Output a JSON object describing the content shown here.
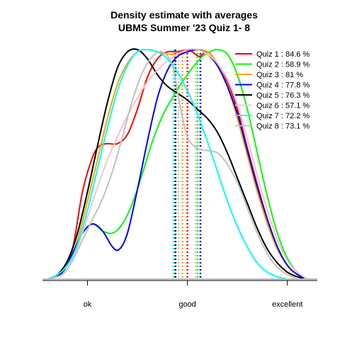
{
  "chart_data": {
    "type": "line",
    "title": "Density estimate with averages",
    "subtitle": "UBMS Summer '23 Quiz 1- 8",
    "xlabel": "",
    "ylabel": "",
    "xlim": [
      0.55,
      3.3
    ],
    "ylim": [
      0,
      1
    ],
    "x_ticks": [
      {
        "value": 1,
        "label": "ok"
      },
      {
        "value": 2,
        "label": "good"
      },
      {
        "value": 3,
        "label": "excellent"
      }
    ],
    "grid": false,
    "legend_position": "top-right",
    "series": [
      {
        "name": "Quiz 1",
        "pct": "84.6 %",
        "color": "#ff0000",
        "mean": 2.0,
        "points": [
          [
            0.6,
            0.0
          ],
          [
            0.75,
            0.03
          ],
          [
            0.85,
            0.13
          ],
          [
            0.95,
            0.38
          ],
          [
            1.05,
            0.53
          ],
          [
            1.12,
            0.58
          ],
          [
            1.2,
            0.59
          ],
          [
            1.3,
            0.59
          ],
          [
            1.4,
            0.63
          ],
          [
            1.5,
            0.74
          ],
          [
            1.6,
            0.88
          ],
          [
            1.7,
            0.96
          ],
          [
            1.8,
            0.99
          ],
          [
            1.9,
            0.99
          ],
          [
            2.0,
            1.0
          ],
          [
            2.05,
            0.99
          ],
          [
            2.12,
            0.97
          ],
          [
            2.2,
            0.99
          ],
          [
            2.3,
            0.94
          ],
          [
            2.4,
            0.86
          ],
          [
            2.5,
            0.74
          ],
          [
            2.6,
            0.57
          ],
          [
            2.7,
            0.41
          ],
          [
            2.8,
            0.26
          ],
          [
            2.9,
            0.14
          ],
          [
            3.0,
            0.06
          ],
          [
            3.1,
            0.02
          ],
          [
            3.2,
            0.0
          ]
        ]
      },
      {
        "name": "Quiz 2",
        "pct": "58.9 %",
        "color": "#00ff00",
        "mean": 2.1,
        "points": [
          [
            0.6,
            0.0
          ],
          [
            0.75,
            0.03
          ],
          [
            0.85,
            0.11
          ],
          [
            0.95,
            0.2
          ],
          [
            1.05,
            0.24
          ],
          [
            1.15,
            0.21
          ],
          [
            1.25,
            0.2
          ],
          [
            1.35,
            0.24
          ],
          [
            1.45,
            0.33
          ],
          [
            1.55,
            0.46
          ],
          [
            1.65,
            0.6
          ],
          [
            1.75,
            0.71
          ],
          [
            1.85,
            0.79
          ],
          [
            1.95,
            0.86
          ],
          [
            2.05,
            0.92
          ],
          [
            2.15,
            0.97
          ],
          [
            2.25,
            0.995
          ],
          [
            2.3,
            1.0
          ],
          [
            2.4,
            0.98
          ],
          [
            2.5,
            0.89
          ],
          [
            2.6,
            0.74
          ],
          [
            2.7,
            0.55
          ],
          [
            2.8,
            0.36
          ],
          [
            2.9,
            0.2
          ],
          [
            3.0,
            0.09
          ],
          [
            3.1,
            0.03
          ],
          [
            3.2,
            0.0
          ]
        ]
      },
      {
        "name": "Quiz 3",
        "pct": "81 %",
        "color": "#ffa500",
        "mean": 1.95,
        "points": [
          [
            0.6,
            0.0
          ],
          [
            0.7,
            0.02
          ],
          [
            0.8,
            0.07
          ],
          [
            0.9,
            0.17
          ],
          [
            1.0,
            0.34
          ],
          [
            1.1,
            0.52
          ],
          [
            1.2,
            0.7
          ],
          [
            1.3,
            0.85
          ],
          [
            1.4,
            0.94
          ],
          [
            1.5,
            0.99
          ],
          [
            1.6,
            1.0
          ],
          [
            1.7,
            0.99
          ],
          [
            1.8,
            0.98
          ],
          [
            1.9,
            0.98
          ],
          [
            2.0,
            0.99
          ],
          [
            2.1,
            1.0
          ],
          [
            2.2,
            0.99
          ],
          [
            2.3,
            0.94
          ],
          [
            2.4,
            0.84
          ],
          [
            2.5,
            0.7
          ],
          [
            2.6,
            0.54
          ],
          [
            2.7,
            0.38
          ],
          [
            2.8,
            0.24
          ],
          [
            2.9,
            0.13
          ],
          [
            3.0,
            0.06
          ],
          [
            3.1,
            0.02
          ],
          [
            3.2,
            0.0
          ]
        ]
      },
      {
        "name": "Quiz 4",
        "pct": "77.8 %",
        "color": "#0000ff",
        "mean": 2.13,
        "points": [
          [
            0.6,
            0.0
          ],
          [
            0.75,
            0.03
          ],
          [
            0.85,
            0.11
          ],
          [
            0.95,
            0.2
          ],
          [
            1.05,
            0.24
          ],
          [
            1.15,
            0.21
          ],
          [
            1.25,
            0.14
          ],
          [
            1.32,
            0.13
          ],
          [
            1.4,
            0.2
          ],
          [
            1.5,
            0.39
          ],
          [
            1.6,
            0.6
          ],
          [
            1.7,
            0.79
          ],
          [
            1.8,
            0.91
          ],
          [
            1.9,
            0.97
          ],
          [
            2.0,
            0.99
          ],
          [
            2.1,
            1.0
          ],
          [
            2.2,
            0.98
          ],
          [
            2.3,
            0.93
          ],
          [
            2.4,
            0.84
          ],
          [
            2.5,
            0.72
          ],
          [
            2.6,
            0.56
          ],
          [
            2.7,
            0.4
          ],
          [
            2.8,
            0.26
          ],
          [
            2.9,
            0.14
          ],
          [
            3.0,
            0.06
          ],
          [
            3.1,
            0.02
          ],
          [
            3.2,
            0.0
          ]
        ]
      },
      {
        "name": "Quiz 5",
        "pct": "76.3 %",
        "color": "#000000",
        "mean": 1.88,
        "points": [
          [
            0.6,
            0.0
          ],
          [
            0.7,
            0.02
          ],
          [
            0.8,
            0.08
          ],
          [
            0.9,
            0.2
          ],
          [
            1.0,
            0.38
          ],
          [
            1.1,
            0.58
          ],
          [
            1.2,
            0.77
          ],
          [
            1.3,
            0.92
          ],
          [
            1.4,
            0.99
          ],
          [
            1.5,
            1.0
          ],
          [
            1.6,
            0.96
          ],
          [
            1.7,
            0.89
          ],
          [
            1.8,
            0.84
          ],
          [
            1.9,
            0.81
          ],
          [
            2.0,
            0.78
          ],
          [
            2.1,
            0.74
          ],
          [
            2.2,
            0.7
          ],
          [
            2.3,
            0.64
          ],
          [
            2.4,
            0.55
          ],
          [
            2.5,
            0.44
          ],
          [
            2.6,
            0.33
          ],
          [
            2.7,
            0.22
          ],
          [
            2.8,
            0.13
          ],
          [
            2.9,
            0.07
          ],
          [
            3.0,
            0.03
          ],
          [
            3.1,
            0.01
          ],
          [
            3.2,
            0.0
          ]
        ]
      },
      {
        "name": "Quiz 6",
        "pct": "57.1 %",
        "color": "#ffc0cb",
        "mean": 2.08,
        "points": [
          [
            0.6,
            0.0
          ],
          [
            0.7,
            0.02
          ],
          [
            0.8,
            0.06
          ],
          [
            0.9,
            0.14
          ],
          [
            1.0,
            0.27
          ],
          [
            1.1,
            0.4
          ],
          [
            1.2,
            0.52
          ],
          [
            1.3,
            0.62
          ],
          [
            1.4,
            0.71
          ],
          [
            1.5,
            0.79
          ],
          [
            1.6,
            0.86
          ],
          [
            1.7,
            0.91
          ],
          [
            1.8,
            0.95
          ],
          [
            1.9,
            0.98
          ],
          [
            2.0,
            1.0
          ],
          [
            2.1,
            1.0
          ],
          [
            2.2,
            0.98
          ],
          [
            2.3,
            0.94
          ],
          [
            2.4,
            0.87
          ],
          [
            2.5,
            0.76
          ],
          [
            2.6,
            0.61
          ],
          [
            2.7,
            0.45
          ],
          [
            2.8,
            0.3
          ],
          [
            2.9,
            0.17
          ],
          [
            3.0,
            0.08
          ],
          [
            3.1,
            0.03
          ],
          [
            3.2,
            0.0
          ]
        ]
      },
      {
        "name": "Quiz 7",
        "pct": "72.2 %",
        "color": "#00ffff",
        "mean": 1.86,
        "points": [
          [
            0.6,
            0.0
          ],
          [
            0.7,
            0.02
          ],
          [
            0.8,
            0.06
          ],
          [
            0.9,
            0.15
          ],
          [
            1.0,
            0.3
          ],
          [
            1.1,
            0.48
          ],
          [
            1.2,
            0.66
          ],
          [
            1.3,
            0.82
          ],
          [
            1.4,
            0.93
          ],
          [
            1.5,
            0.99
          ],
          [
            1.6,
            1.0
          ],
          [
            1.7,
            0.99
          ],
          [
            1.8,
            0.96
          ],
          [
            1.9,
            0.9
          ],
          [
            2.0,
            0.82
          ],
          [
            2.1,
            0.72
          ],
          [
            2.2,
            0.6
          ],
          [
            2.3,
            0.47
          ],
          [
            2.4,
            0.34
          ],
          [
            2.5,
            0.23
          ],
          [
            2.6,
            0.14
          ],
          [
            2.7,
            0.07
          ],
          [
            2.8,
            0.03
          ],
          [
            2.9,
            0.01
          ],
          [
            3.0,
            0.0
          ]
        ]
      },
      {
        "name": "Quiz 8",
        "pct": "73.1 %",
        "color": "#c0c0c0",
        "mean": 1.91,
        "points": [
          [
            0.6,
            0.0
          ],
          [
            0.75,
            0.02
          ],
          [
            0.85,
            0.08
          ],
          [
            0.95,
            0.17
          ],
          [
            1.05,
            0.26
          ],
          [
            1.15,
            0.35
          ],
          [
            1.25,
            0.47
          ],
          [
            1.35,
            0.62
          ],
          [
            1.45,
            0.78
          ],
          [
            1.55,
            0.9
          ],
          [
            1.65,
            0.97
          ],
          [
            1.75,
            0.99
          ],
          [
            1.85,
            0.93
          ],
          [
            1.92,
            0.77
          ],
          [
            2.0,
            0.62
          ],
          [
            2.1,
            0.57
          ],
          [
            2.2,
            0.56
          ],
          [
            2.3,
            0.55
          ],
          [
            2.4,
            0.5
          ],
          [
            2.5,
            0.42
          ],
          [
            2.6,
            0.31
          ],
          [
            2.7,
            0.2
          ],
          [
            2.8,
            0.11
          ],
          [
            2.9,
            0.05
          ],
          [
            3.0,
            0.02
          ],
          [
            3.1,
            0.0
          ]
        ]
      }
    ]
  }
}
